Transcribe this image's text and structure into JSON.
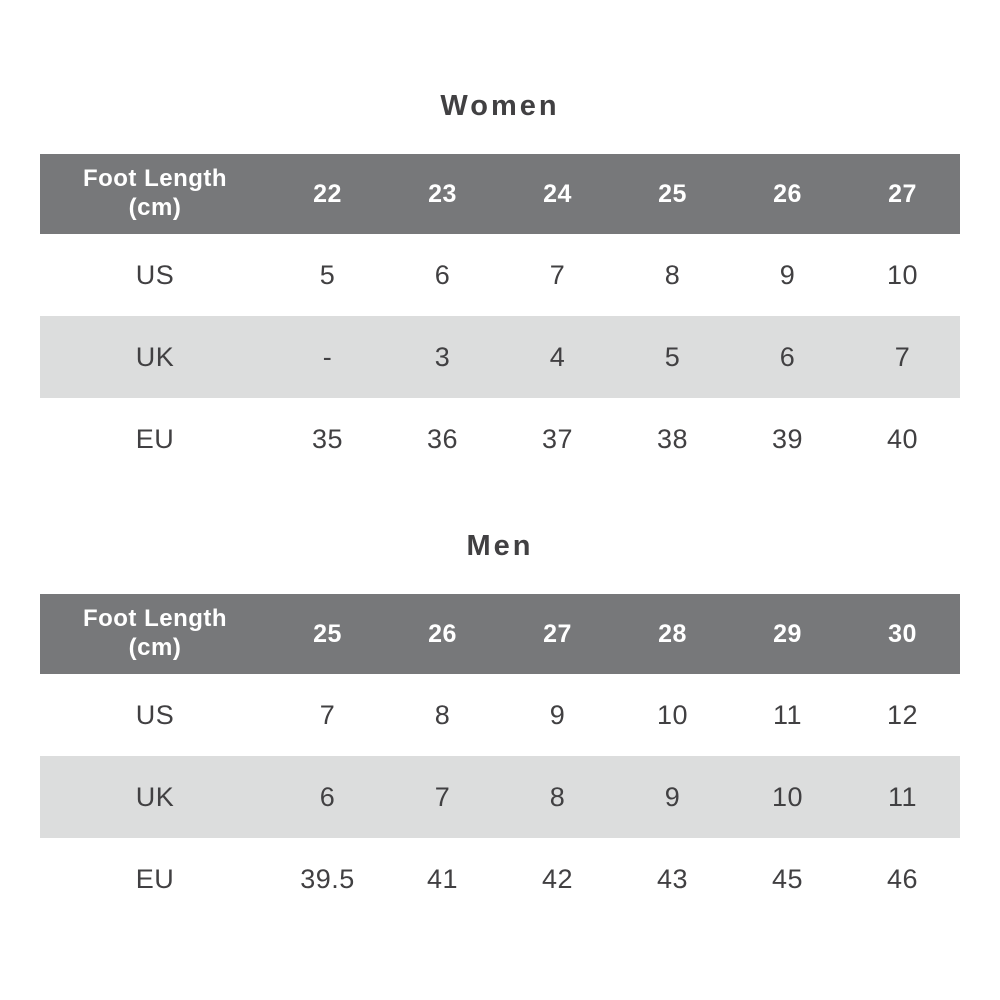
{
  "colors": {
    "header_bg": "#77787a",
    "alt_row_bg": "#dcdddd",
    "text": "#414042",
    "header_text": "#ffffff",
    "page_bg": "#ffffff"
  },
  "women": {
    "title": "Women",
    "header": {
      "label_line1": "Foot Length",
      "label_line2": "(cm)",
      "values": [
        "22",
        "23",
        "24",
        "25",
        "26",
        "27"
      ]
    },
    "rows": [
      {
        "label": "US",
        "values": [
          "5",
          "6",
          "7",
          "8",
          "9",
          "10"
        ]
      },
      {
        "label": "UK",
        "values": [
          "-",
          "3",
          "4",
          "5",
          "6",
          "7"
        ]
      },
      {
        "label": "EU",
        "values": [
          "35",
          "36",
          "37",
          "38",
          "39",
          "40"
        ]
      }
    ]
  },
  "men": {
    "title": "Men",
    "header": {
      "label_line1": "Foot Length",
      "label_line2": "(cm)",
      "values": [
        "25",
        "26",
        "27",
        "28",
        "29",
        "30"
      ]
    },
    "rows": [
      {
        "label": "US",
        "values": [
          "7",
          "8",
          "9",
          "10",
          "11",
          "12"
        ]
      },
      {
        "label": "UK",
        "values": [
          "6",
          "7",
          "8",
          "9",
          "10",
          "11"
        ]
      },
      {
        "label": "EU",
        "values": [
          "39.5",
          "41",
          "42",
          "43",
          "45",
          "46"
        ]
      }
    ]
  },
  "chart_data": [
    {
      "type": "table",
      "title": "Women",
      "columns": [
        "Foot Length (cm)",
        "22",
        "23",
        "24",
        "25",
        "26",
        "27"
      ],
      "rows": [
        [
          "US",
          "5",
          "6",
          "7",
          "8",
          "9",
          "10"
        ],
        [
          "UK",
          "-",
          "3",
          "4",
          "5",
          "6",
          "7"
        ],
        [
          "EU",
          "35",
          "36",
          "37",
          "38",
          "39",
          "40"
        ]
      ]
    },
    {
      "type": "table",
      "title": "Men",
      "columns": [
        "Foot Length (cm)",
        "25",
        "26",
        "27",
        "28",
        "29",
        "30"
      ],
      "rows": [
        [
          "US",
          "7",
          "8",
          "9",
          "10",
          "11",
          "12"
        ],
        [
          "UK",
          "6",
          "7",
          "8",
          "9",
          "10",
          "11"
        ],
        [
          "EU",
          "39.5",
          "41",
          "42",
          "43",
          "45",
          "46"
        ]
      ]
    }
  ]
}
